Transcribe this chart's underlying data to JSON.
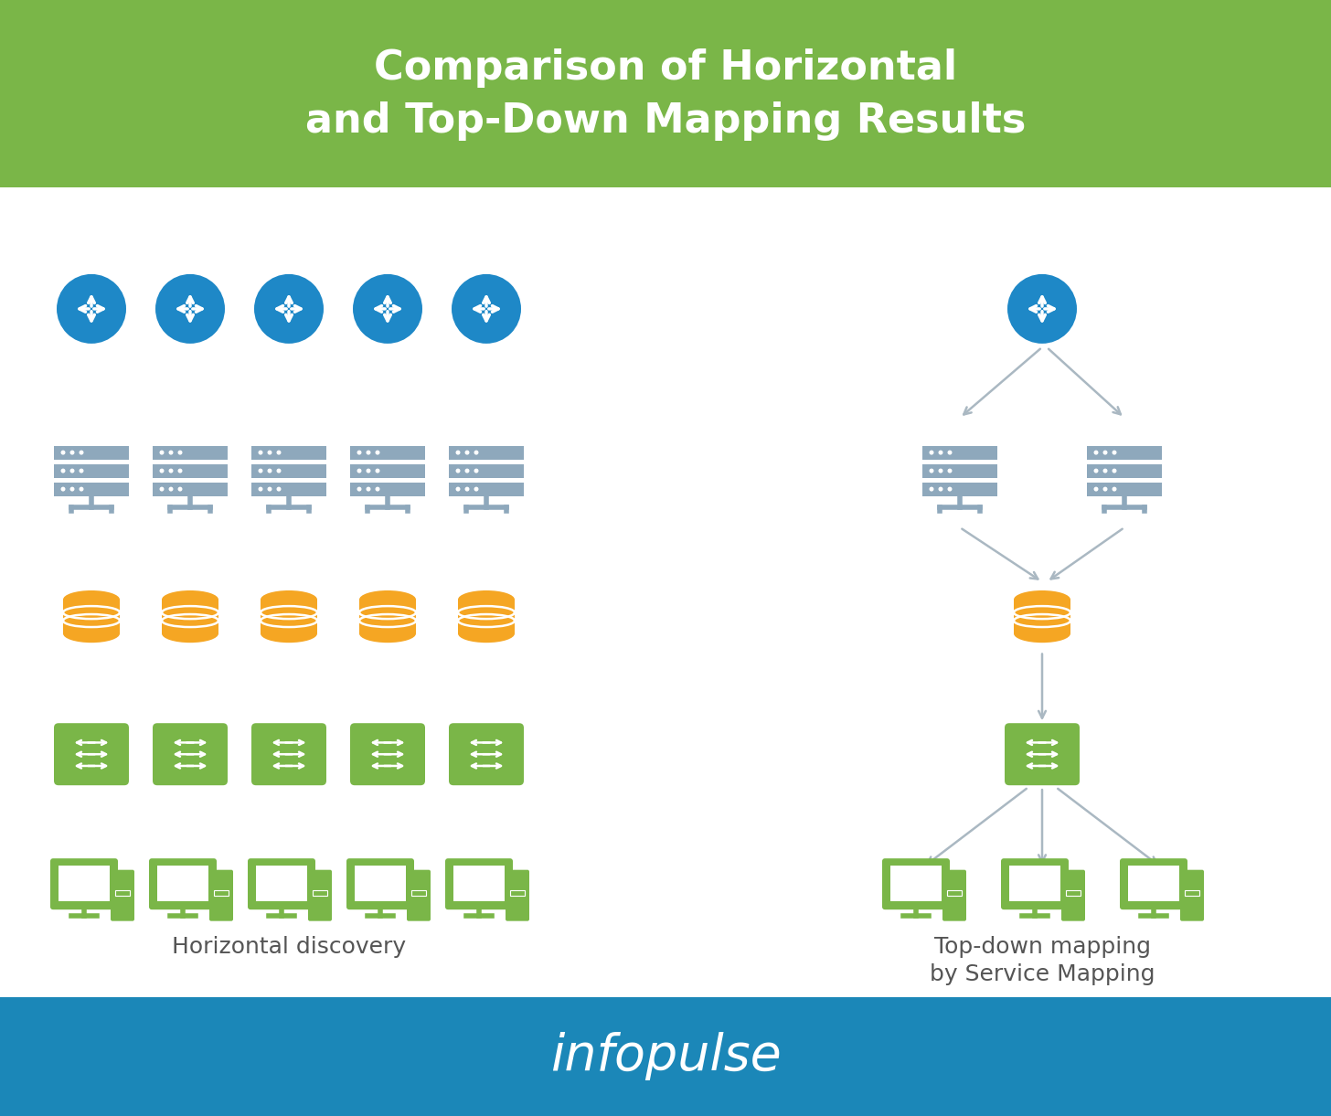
{
  "title_line1": "Comparison of Horizontal",
  "title_line2": "and Top-Down Mapping Results",
  "title_bg": "#7ab648",
  "footer_text": "infopulse",
  "footer_bg": "#1b87b8",
  "main_bg": "#ffffff",
  "title_color": "#ffffff",
  "footer_color": "#ffffff",
  "label_horizontal": "Horizontal discovery",
  "label_topdown_line1": "Top-down mapping",
  "label_topdown_line2": "by Service Mapping",
  "label_color": "#555555",
  "router_color": "#1e88c7",
  "server_color": "#8ea8bc",
  "database_color": "#f5a623",
  "switch_color": "#7ab648",
  "client_color": "#7ab648",
  "arrow_color": "#aab8c2",
  "fig_width": 14.56,
  "fig_height": 12.21
}
